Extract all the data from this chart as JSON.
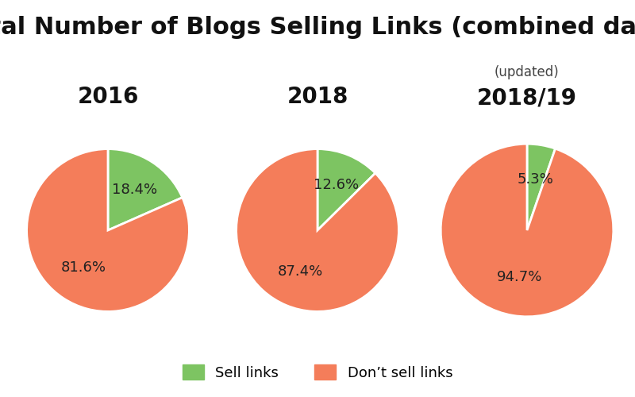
{
  "title": "Total Number of Blogs Selling Links (combined data)",
  "title_fontsize": 22,
  "title_fontweight": "bold",
  "charts": [
    {
      "year_label": "2016",
      "subtitle": "",
      "sell_pct": 18.4,
      "dont_sell_pct": 81.6
    },
    {
      "year_label": "2018",
      "subtitle": "",
      "sell_pct": 12.6,
      "dont_sell_pct": 87.4
    },
    {
      "year_label": "2018/19",
      "subtitle": "(updated)",
      "sell_pct": 5.3,
      "dont_sell_pct": 94.7
    }
  ],
  "color_sell": "#7dc462",
  "color_dont_sell": "#f47d5a",
  "legend_sell_label": "Sell links",
  "legend_dont_sell_label": "Don’t sell links",
  "background_color": "#ffffff",
  "label_fontsize": 13,
  "year_label_fontsize": 20,
  "year_label_fontweight": "bold",
  "subtitle_fontsize": 12,
  "startangle": 90
}
